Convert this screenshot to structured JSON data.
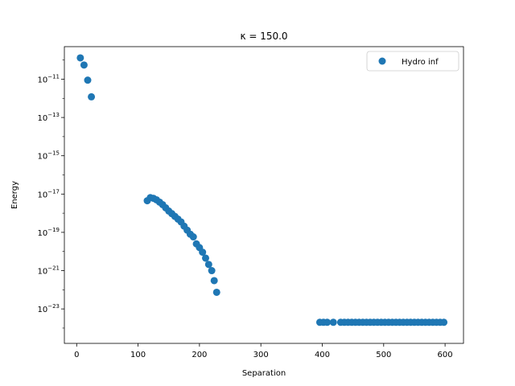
{
  "chart_data": {
    "type": "scatter",
    "title": "κ = 150.0",
    "xlabel": "Separation",
    "ylabel": "Energy",
    "xlim": [
      -20,
      630
    ],
    "ylog": true,
    "ylim_exponents": [
      -24.8,
      -9.3
    ],
    "x_ticks": [
      0,
      100,
      200,
      300,
      400,
      500,
      600
    ],
    "y_tick_exponents": [
      -23,
      -21,
      -19,
      -17,
      -15,
      -13,
      -11
    ],
    "legend": {
      "position": "top-right",
      "entries": [
        "Hydro inf"
      ]
    },
    "grid": false,
    "series": [
      {
        "name": "Hydro inf",
        "color": "#1f77b4",
        "points": [
          [
            6,
            1.3e-10
          ],
          [
            12,
            5.5e-11
          ],
          [
            18,
            8.9e-12
          ],
          [
            24,
            1.2e-12
          ],
          [
            115,
            4.5e-18
          ],
          [
            120,
            6.5e-18
          ],
          [
            125,
            6e-18
          ],
          [
            130,
            5e-18
          ],
          [
            135,
            3.8e-18
          ],
          [
            140,
            2.8e-18
          ],
          [
            145,
            1.9e-18
          ],
          [
            150,
            1.3e-18
          ],
          [
            155,
            9.5e-19
          ],
          [
            160,
            6.8e-19
          ],
          [
            165,
            4.9e-19
          ],
          [
            170,
            3.5e-19
          ],
          [
            175,
            2.1e-19
          ],
          [
            180,
            1.3e-19
          ],
          [
            185,
            8e-20
          ],
          [
            190,
            5.8e-20
          ],
          [
            195,
            2.5e-20
          ],
          [
            200,
            1.6e-20
          ],
          [
            205,
            9.2e-21
          ],
          [
            210,
            4.5e-21
          ],
          [
            215,
            2.1e-21
          ],
          [
            220,
            1e-21
          ],
          [
            224,
            3e-22
          ],
          [
            228,
            7.4e-23
          ],
          [
            396,
            2e-24
          ],
          [
            402,
            2e-24
          ],
          [
            408,
            2e-24
          ],
          [
            418,
            2e-24
          ],
          [
            430,
            2e-24
          ],
          [
            436,
            2e-24
          ],
          [
            442,
            2e-24
          ],
          [
            448,
            2e-24
          ],
          [
            454,
            2e-24
          ],
          [
            460,
            2e-24
          ],
          [
            466,
            2e-24
          ],
          [
            472,
            2e-24
          ],
          [
            478,
            2e-24
          ],
          [
            484,
            2e-24
          ],
          [
            490,
            2e-24
          ],
          [
            496,
            2e-24
          ],
          [
            502,
            2e-24
          ],
          [
            508,
            2e-24
          ],
          [
            514,
            2e-24
          ],
          [
            520,
            2e-24
          ],
          [
            526,
            2e-24
          ],
          [
            532,
            2e-24
          ],
          [
            538,
            2e-24
          ],
          [
            544,
            2e-24
          ],
          [
            550,
            2e-24
          ],
          [
            556,
            2e-24
          ],
          [
            562,
            2e-24
          ],
          [
            568,
            2e-24
          ],
          [
            574,
            2e-24
          ],
          [
            580,
            2e-24
          ],
          [
            586,
            2e-24
          ],
          [
            592,
            2e-24
          ],
          [
            598,
            2e-24
          ]
        ]
      }
    ]
  }
}
